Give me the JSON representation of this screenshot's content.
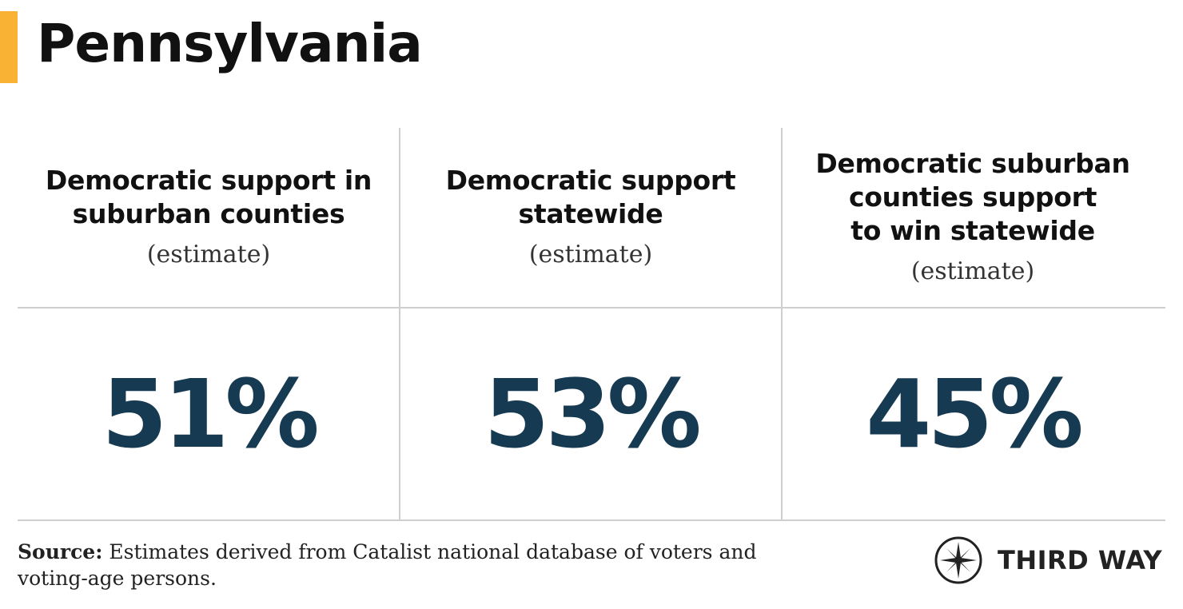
{
  "colors": {
    "accent": "#f9b233",
    "value": "#163a52",
    "divider": "#cfcfcf"
  },
  "title": "Pennsylvania",
  "columns": [
    {
      "heading_lines": [
        "Democratic support in",
        "suburban counties"
      ],
      "note": "(estimate)",
      "value_label": "51%"
    },
    {
      "heading_lines": [
        "Democratic support",
        "statewide"
      ],
      "note": "(estimate)",
      "value_label": "53%"
    },
    {
      "heading_lines": [
        "Democratic suburban",
        "counties support",
        "to win statewide"
      ],
      "note": "(estimate)",
      "value_label": "45%"
    }
  ],
  "footer": {
    "source_label": "Source:",
    "source_text": "Estimates derived from Catalist national database of voters and voting-age persons."
  },
  "logo": {
    "icon": "compass-icon",
    "text": "THIRD WAY"
  },
  "chart_data": {
    "type": "table",
    "title": "Pennsylvania",
    "columns": [
      "Democratic support in suburban counties (estimate)",
      "Democratic support statewide (estimate)",
      "Democratic suburban counties support to win statewide (estimate)"
    ],
    "values": [
      51,
      53,
      45
    ],
    "unit": "%"
  }
}
